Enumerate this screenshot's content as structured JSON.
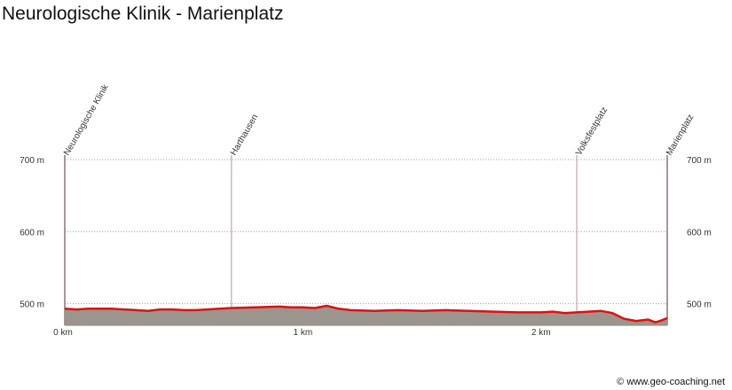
{
  "title": "Neurologische Klinik - Marienplatz",
  "copyright": "© www.geo-coaching.net",
  "colors": {
    "route_line": "#dd1111",
    "terrain_fill": "#9c958d",
    "grid": "#b49494",
    "background": "#ffffff"
  },
  "chart_data": {
    "type": "area",
    "title": "Neurologische Klinik - Marienplatz",
    "xlabel": "",
    "ylabel": "",
    "x_unit": "km",
    "y_unit": "m",
    "xlim": [
      0,
      2.53
    ],
    "ylim": [
      470,
      700
    ],
    "grid": true,
    "y_ticks": [
      {
        "value": 500,
        "label": "500 m"
      },
      {
        "value": 600,
        "label": "600 m"
      },
      {
        "value": 700,
        "label": "700 m"
      }
    ],
    "x_ticks": [
      {
        "value": 0,
        "label": "0 km"
      },
      {
        "value": 1,
        "label": "1 km"
      },
      {
        "value": 2,
        "label": "2 km"
      }
    ],
    "waypoints": [
      {
        "name": "Neurologische Klinik",
        "km": 0
      },
      {
        "name": "Harthausen",
        "km": 0.7
      },
      {
        "name": "Volksfestplatz",
        "km": 2.15
      },
      {
        "name": "Marienplatz",
        "km": 2.53
      }
    ],
    "series": [
      {
        "x": [
          0,
          0.05,
          0.1,
          0.2,
          0.3,
          0.35,
          0.4,
          0.45,
          0.5,
          0.55,
          0.6,
          0.65,
          0.7,
          0.8,
          0.9,
          0.95,
          1.0,
          1.05,
          1.1,
          1.15,
          1.2,
          1.3,
          1.4,
          1.5,
          1.6,
          1.7,
          1.8,
          1.9,
          2.0,
          2.05,
          2.1,
          2.15,
          2.2,
          2.25,
          2.3,
          2.35,
          2.4,
          2.45,
          2.48,
          2.5,
          2.53
        ],
        "y": [
          493,
          492,
          493,
          493,
          491,
          490,
          492,
          492,
          491,
          491,
          492,
          493,
          494,
          495,
          496,
          495,
          495,
          494,
          497,
          493,
          491,
          490,
          491,
          490,
          491,
          490,
          489,
          488,
          488,
          489,
          487,
          488,
          489,
          490,
          487,
          479,
          476,
          478,
          474,
          476,
          480
        ]
      }
    ]
  }
}
